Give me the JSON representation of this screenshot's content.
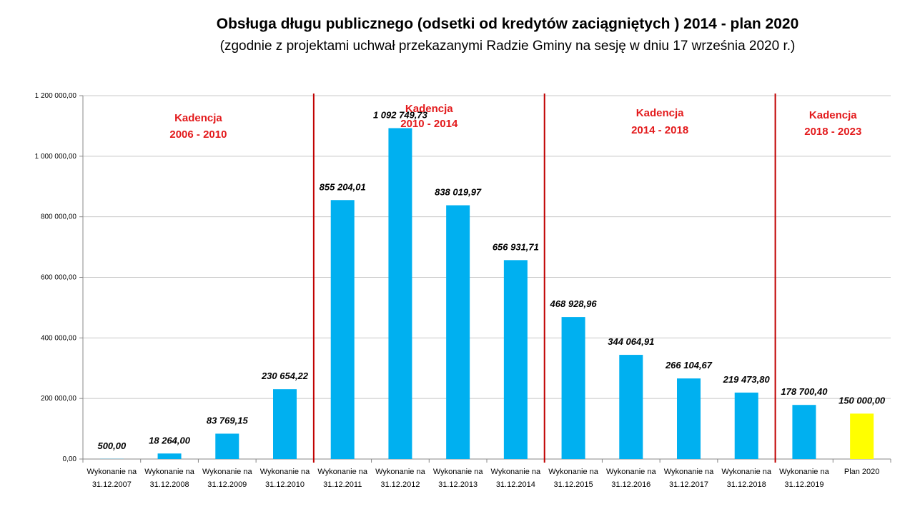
{
  "chart_data": {
    "type": "bar",
    "title": "Obsługa długu publicznego (odsetki od kredytów zaciągniętych )  2014 - plan 2020",
    "subtitle": "(zgodnie z projektami uchwał przekazanymi Radzie Gminy na sesję w dniu 17 września 2020 r.)",
    "categories": [
      [
        "Wykonanie na",
        "31.12.2007"
      ],
      [
        "Wykonanie na",
        "31.12.2008"
      ],
      [
        "Wykonanie na",
        "31.12.2009"
      ],
      [
        "Wykonanie na",
        "31.12.2010"
      ],
      [
        "Wykonanie na",
        "31.12.2011"
      ],
      [
        "Wykonanie na",
        "31.12.2012"
      ],
      [
        "Wykonanie na",
        "31.12.2013"
      ],
      [
        "Wykonanie na",
        "31.12.2014"
      ],
      [
        "Wykonanie na",
        "31.12.2015"
      ],
      [
        "Wykonanie na",
        "31.12.2016"
      ],
      [
        "Wykonanie na",
        "31.12.2017"
      ],
      [
        "Wykonanie na",
        "31.12.2018"
      ],
      [
        "Wykonanie na",
        "31.12.2019"
      ],
      [
        "Plan 2020"
      ]
    ],
    "values": [
      500.0,
      18264.0,
      83769.15,
      230654.22,
      855204.01,
      1092749.73,
      838019.97,
      656931.71,
      468928.96,
      344064.91,
      266104.67,
      219473.8,
      178700.4,
      150000.0
    ],
    "data_labels": [
      "500,00",
      "18 264,00",
      "83 769,15",
      "230 654,22",
      "855 204,01",
      "1 092 749,73",
      "838 019,97",
      "656 931,71",
      "468 928,96",
      "344 064,91",
      "266 104,67",
      "219 473,80",
      "178 700,40",
      "150 000,00"
    ],
    "bar_colors": [
      "#00b0f0",
      "#00b0f0",
      "#00b0f0",
      "#00b0f0",
      "#00b0f0",
      "#00b0f0",
      "#00b0f0",
      "#00b0f0",
      "#00b0f0",
      "#00b0f0",
      "#00b0f0",
      "#00b0f0",
      "#00b0f0",
      "#ffff00"
    ],
    "ylim": [
      0,
      1200000
    ],
    "yticks": [
      0,
      200000,
      400000,
      600000,
      800000,
      1000000,
      1200000
    ],
    "ytick_labels": [
      "0,00",
      "200 000,00",
      "400 000,00",
      "600 000,00",
      "800 000,00",
      "1 000 000,00",
      "1 200 000,00"
    ],
    "grid": true,
    "legend": "none",
    "separator_color": "#c00000",
    "separators_after_index": [
      3,
      7,
      11
    ],
    "kadencje": [
      {
        "line1": "Kadencja",
        "line2": "2006 - 2010",
        "from": 0,
        "to": 3
      },
      {
        "line1": "Kadencja",
        "line2": "2010 - 2014",
        "from": 4,
        "to": 7
      },
      {
        "line1": "Kadencja",
        "line2": "2014 - 2018",
        "from": 8,
        "to": 11
      },
      {
        "line1": "Kadencja",
        "line2": "2018 - 2023",
        "from": 12,
        "to": 13
      }
    ],
    "kadencja_color": "#e31a1c"
  }
}
